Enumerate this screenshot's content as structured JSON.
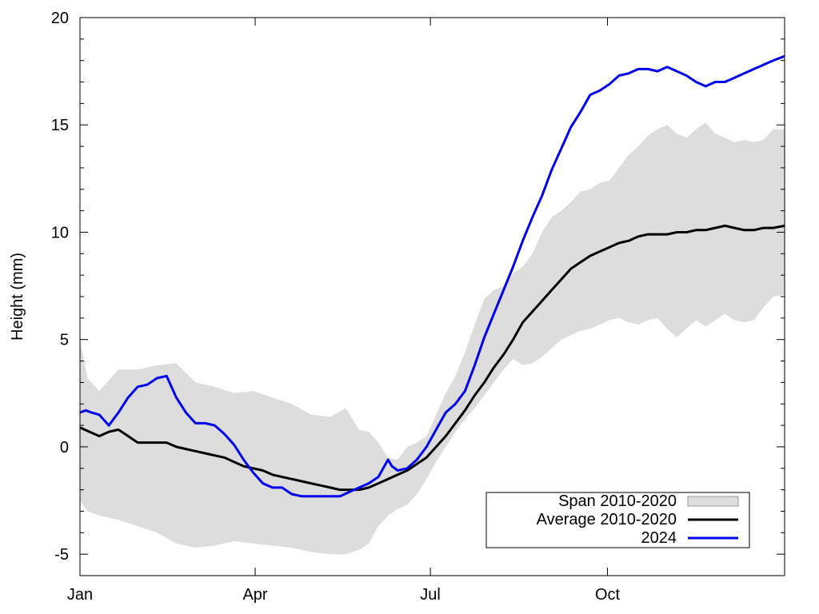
{
  "chart_data": {
    "type": "line",
    "title": "",
    "xlabel": "",
    "ylabel": "Height (mm)",
    "xlim": [
      0,
      366
    ],
    "ylim": [
      -6,
      20
    ],
    "x_ticks": [
      {
        "label": "Jan",
        "value": 0
      },
      {
        "label": "Apr",
        "value": 91
      },
      {
        "label": "Jul",
        "value": 182
      },
      {
        "label": "Oct",
        "value": 274
      }
    ],
    "y_ticks": [
      -5,
      0,
      5,
      10,
      15,
      20
    ],
    "grid": false,
    "legend_position": "bottom-right",
    "series": [
      {
        "name": "Span 2010-2020",
        "kind": "band",
        "color": "#dddddd",
        "x": [
          0,
          4,
          10,
          20,
          30,
          40,
          50,
          60,
          70,
          80,
          90,
          100,
          110,
          120,
          130,
          138,
          145,
          150,
          155,
          160,
          165,
          170,
          175,
          180,
          185,
          190,
          195,
          200,
          205,
          210,
          215,
          220,
          225,
          230,
          235,
          240,
          245,
          250,
          255,
          260,
          265,
          270,
          275,
          280,
          285,
          290,
          295,
          300,
          305,
          310,
          315,
          320,
          325,
          330,
          335,
          340,
          345,
          350,
          355,
          360,
          366
        ],
        "lower": [
          -2.5,
          -3.0,
          -3.2,
          -3.4,
          -3.7,
          -4.0,
          -4.5,
          -4.7,
          -4.6,
          -4.4,
          -4.5,
          -4.6,
          -4.7,
          -4.9,
          -5.0,
          -5.0,
          -4.8,
          -4.5,
          -3.7,
          -3.2,
          -2.9,
          -2.7,
          -2.2,
          -1.5,
          -0.7,
          0.0,
          0.7,
          1.3,
          1.8,
          2.4,
          3.0,
          3.6,
          4.1,
          3.8,
          3.9,
          4.2,
          4.6,
          5.0,
          5.2,
          5.4,
          5.5,
          5.7,
          5.9,
          6.0,
          5.8,
          5.7,
          5.9,
          6.0,
          5.5,
          5.1,
          5.5,
          5.9,
          5.6,
          5.9,
          6.2,
          5.9,
          5.8,
          5.9,
          6.5,
          7.0,
          7.1
        ],
        "upper": [
          5.0,
          3.2,
          2.6,
          3.6,
          3.6,
          3.8,
          3.9,
          3.0,
          2.8,
          2.5,
          2.6,
          2.3,
          2.0,
          1.5,
          1.4,
          1.8,
          0.8,
          0.7,
          0.2,
          -0.5,
          -0.6,
          0.0,
          0.2,
          0.5,
          1.5,
          2.5,
          3.3,
          4.4,
          5.7,
          6.9,
          7.3,
          7.5,
          8.1,
          8.4,
          9.0,
          10.0,
          10.7,
          11.0,
          11.4,
          11.9,
          12.0,
          12.3,
          12.4,
          13.0,
          13.6,
          14.0,
          14.5,
          14.8,
          15.0,
          14.6,
          14.4,
          14.8,
          15.1,
          14.6,
          14.4,
          14.2,
          14.3,
          14.2,
          14.3,
          14.8,
          14.8
        ]
      },
      {
        "name": "Average 2010-2020",
        "kind": "line",
        "color": "#000000",
        "x": [
          0,
          5,
          10,
          15,
          20,
          25,
          30,
          35,
          40,
          45,
          50,
          55,
          60,
          65,
          70,
          75,
          80,
          85,
          90,
          95,
          100,
          105,
          110,
          115,
          120,
          125,
          130,
          135,
          140,
          145,
          150,
          155,
          160,
          165,
          170,
          175,
          180,
          185,
          190,
          195,
          200,
          205,
          210,
          215,
          220,
          225,
          230,
          235,
          240,
          245,
          250,
          255,
          260,
          265,
          270,
          275,
          280,
          285,
          290,
          295,
          300,
          305,
          310,
          315,
          320,
          325,
          330,
          335,
          340,
          345,
          350,
          355,
          360,
          366
        ],
        "values": [
          0.9,
          0.7,
          0.5,
          0.7,
          0.8,
          0.5,
          0.2,
          0.2,
          0.2,
          0.2,
          0.0,
          -0.1,
          -0.2,
          -0.3,
          -0.4,
          -0.5,
          -0.7,
          -0.9,
          -1.0,
          -1.1,
          -1.3,
          -1.4,
          -1.5,
          -1.6,
          -1.7,
          -1.8,
          -1.9,
          -2.0,
          -2.0,
          -2.0,
          -1.9,
          -1.7,
          -1.5,
          -1.3,
          -1.1,
          -0.8,
          -0.5,
          0.0,
          0.5,
          1.1,
          1.7,
          2.4,
          3.0,
          3.7,
          4.3,
          5.0,
          5.8,
          6.3,
          6.8,
          7.3,
          7.8,
          8.3,
          8.6,
          8.9,
          9.1,
          9.3,
          9.5,
          9.6,
          9.8,
          9.9,
          9.9,
          9.9,
          10.0,
          10.0,
          10.1,
          10.1,
          10.2,
          10.3,
          10.2,
          10.1,
          10.1,
          10.2,
          10.2,
          10.3
        ]
      },
      {
        "name": "2024",
        "kind": "line",
        "color": "#0000ee",
        "x": [
          0,
          3,
          6,
          10,
          15,
          20,
          25,
          30,
          35,
          40,
          45,
          50,
          55,
          60,
          65,
          70,
          75,
          80,
          85,
          90,
          95,
          100,
          105,
          110,
          115,
          120,
          125,
          130,
          135,
          140,
          145,
          150,
          155,
          160,
          162,
          165,
          170,
          175,
          180,
          185,
          190,
          195,
          200,
          205,
          210,
          215,
          220,
          225,
          230,
          235,
          240,
          245,
          250,
          255,
          260,
          265,
          270,
          275,
          280,
          285,
          290,
          295,
          300,
          305,
          310,
          315,
          320,
          325,
          330,
          335,
          340,
          345,
          350,
          355,
          360,
          366
        ],
        "values": [
          1.6,
          1.7,
          1.6,
          1.5,
          1.0,
          1.6,
          2.3,
          2.8,
          2.9,
          3.2,
          3.3,
          2.3,
          1.6,
          1.1,
          1.1,
          1.0,
          0.6,
          0.1,
          -0.6,
          -1.2,
          -1.7,
          -1.9,
          -1.9,
          -2.2,
          -2.3,
          -2.3,
          -2.3,
          -2.3,
          -2.3,
          -2.1,
          -1.9,
          -1.7,
          -1.4,
          -0.6,
          -0.9,
          -1.1,
          -1.0,
          -0.6,
          0.0,
          0.8,
          1.6,
          2.0,
          2.6,
          3.8,
          5.1,
          6.2,
          7.3,
          8.4,
          9.6,
          10.7,
          11.7,
          12.9,
          13.9,
          14.9,
          15.6,
          16.4,
          16.6,
          16.9,
          17.3,
          17.4,
          17.6,
          17.6,
          17.5,
          17.7,
          17.5,
          17.3,
          17.0,
          16.8,
          17.0,
          17.0,
          17.2,
          17.4,
          17.6,
          17.8,
          18.0,
          18.2
        ]
      }
    ]
  }
}
